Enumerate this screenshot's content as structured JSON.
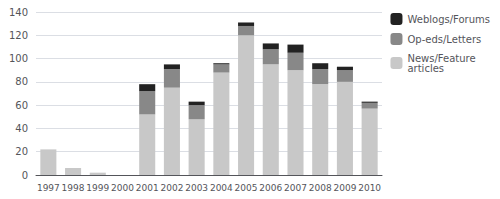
{
  "chart_data": {
    "type": "bar",
    "stacked": true,
    "categories": [
      "1997",
      "1998",
      "1999",
      "2000",
      "2001",
      "2002",
      "2003",
      "2004",
      "2005",
      "2006",
      "2007",
      "2008",
      "2009",
      "2010"
    ],
    "series": [
      {
        "name": "News/Feature\narticles",
        "color": "#c8c8c8",
        "values": [
          22,
          6,
          2,
          0,
          52,
          75,
          48,
          88,
          120,
          95,
          90,
          78,
          80,
          57
        ]
      },
      {
        "name": "Op-eds/Letters",
        "color": "#888888",
        "values": [
          0,
          0,
          0,
          0,
          20,
          16,
          12,
          7,
          8,
          13,
          15,
          13,
          10,
          5
        ]
      },
      {
        "name": "Weblogs/Forums",
        "color": "#222222",
        "values": [
          0,
          0,
          0,
          0,
          6,
          4,
          3,
          1,
          3,
          5,
          7,
          5,
          3,
          1
        ]
      }
    ],
    "ylim": [
      0,
      140
    ],
    "yticks": [
      0,
      20,
      40,
      60,
      80,
      100,
      120,
      140
    ],
    "grid": true,
    "legend": "upper right"
  }
}
